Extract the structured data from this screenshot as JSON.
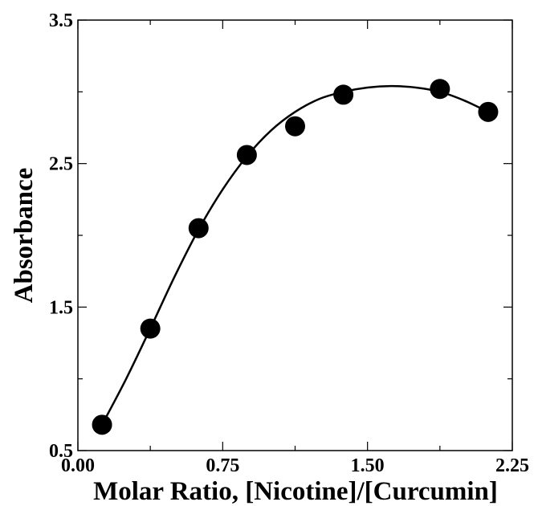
{
  "chart_data": {
    "type": "scatter",
    "title": "",
    "xlabel": "Molar Ratio, [Nicotine]/[Curcumin]",
    "ylabel": "Absorbance",
    "xlim": [
      0,
      2.25
    ],
    "ylim": [
      0.5,
      3.5
    ],
    "x_ticks": [
      {
        "value": 0,
        "label": "0.00"
      },
      {
        "value": 0.75,
        "label": "0.75"
      },
      {
        "value": 1.5,
        "label": "1.50"
      },
      {
        "value": 2.25,
        "label": "2.25"
      }
    ],
    "x_minor_ticks": [
      0.375,
      1.125,
      1.875
    ],
    "y_ticks": [
      {
        "value": 0.5,
        "label": "0.5"
      },
      {
        "value": 1.5,
        "label": "1.5"
      },
      {
        "value": 2.5,
        "label": "2.5"
      },
      {
        "value": 3.5,
        "label": "3.5"
      }
    ],
    "y_minor_ticks": [
      1.0,
      2.0,
      3.0
    ],
    "grid": false,
    "legend": "none",
    "marker_color": "#000000",
    "series": [
      {
        "x": [
          0.125,
          0.375,
          0.625,
          0.875,
          1.125,
          1.375,
          1.875,
          2.125
        ],
        "y": [
          0.68,
          1.35,
          2.05,
          2.56,
          2.76,
          2.98,
          3.02,
          2.86
        ]
      }
    ],
    "fit_curve": {
      "x": [
        0.125,
        0.25,
        0.375,
        0.5,
        0.625,
        0.75,
        0.875,
        1.0,
        1.125,
        1.25,
        1.375,
        1.5,
        1.625,
        1.75,
        1.875,
        2.0,
        2.125
      ],
      "y": [
        0.68,
        1.0,
        1.35,
        1.71,
        2.04,
        2.32,
        2.55,
        2.73,
        2.86,
        2.95,
        3.0,
        3.03,
        3.04,
        3.03,
        3.0,
        2.94,
        2.86
      ]
    }
  }
}
